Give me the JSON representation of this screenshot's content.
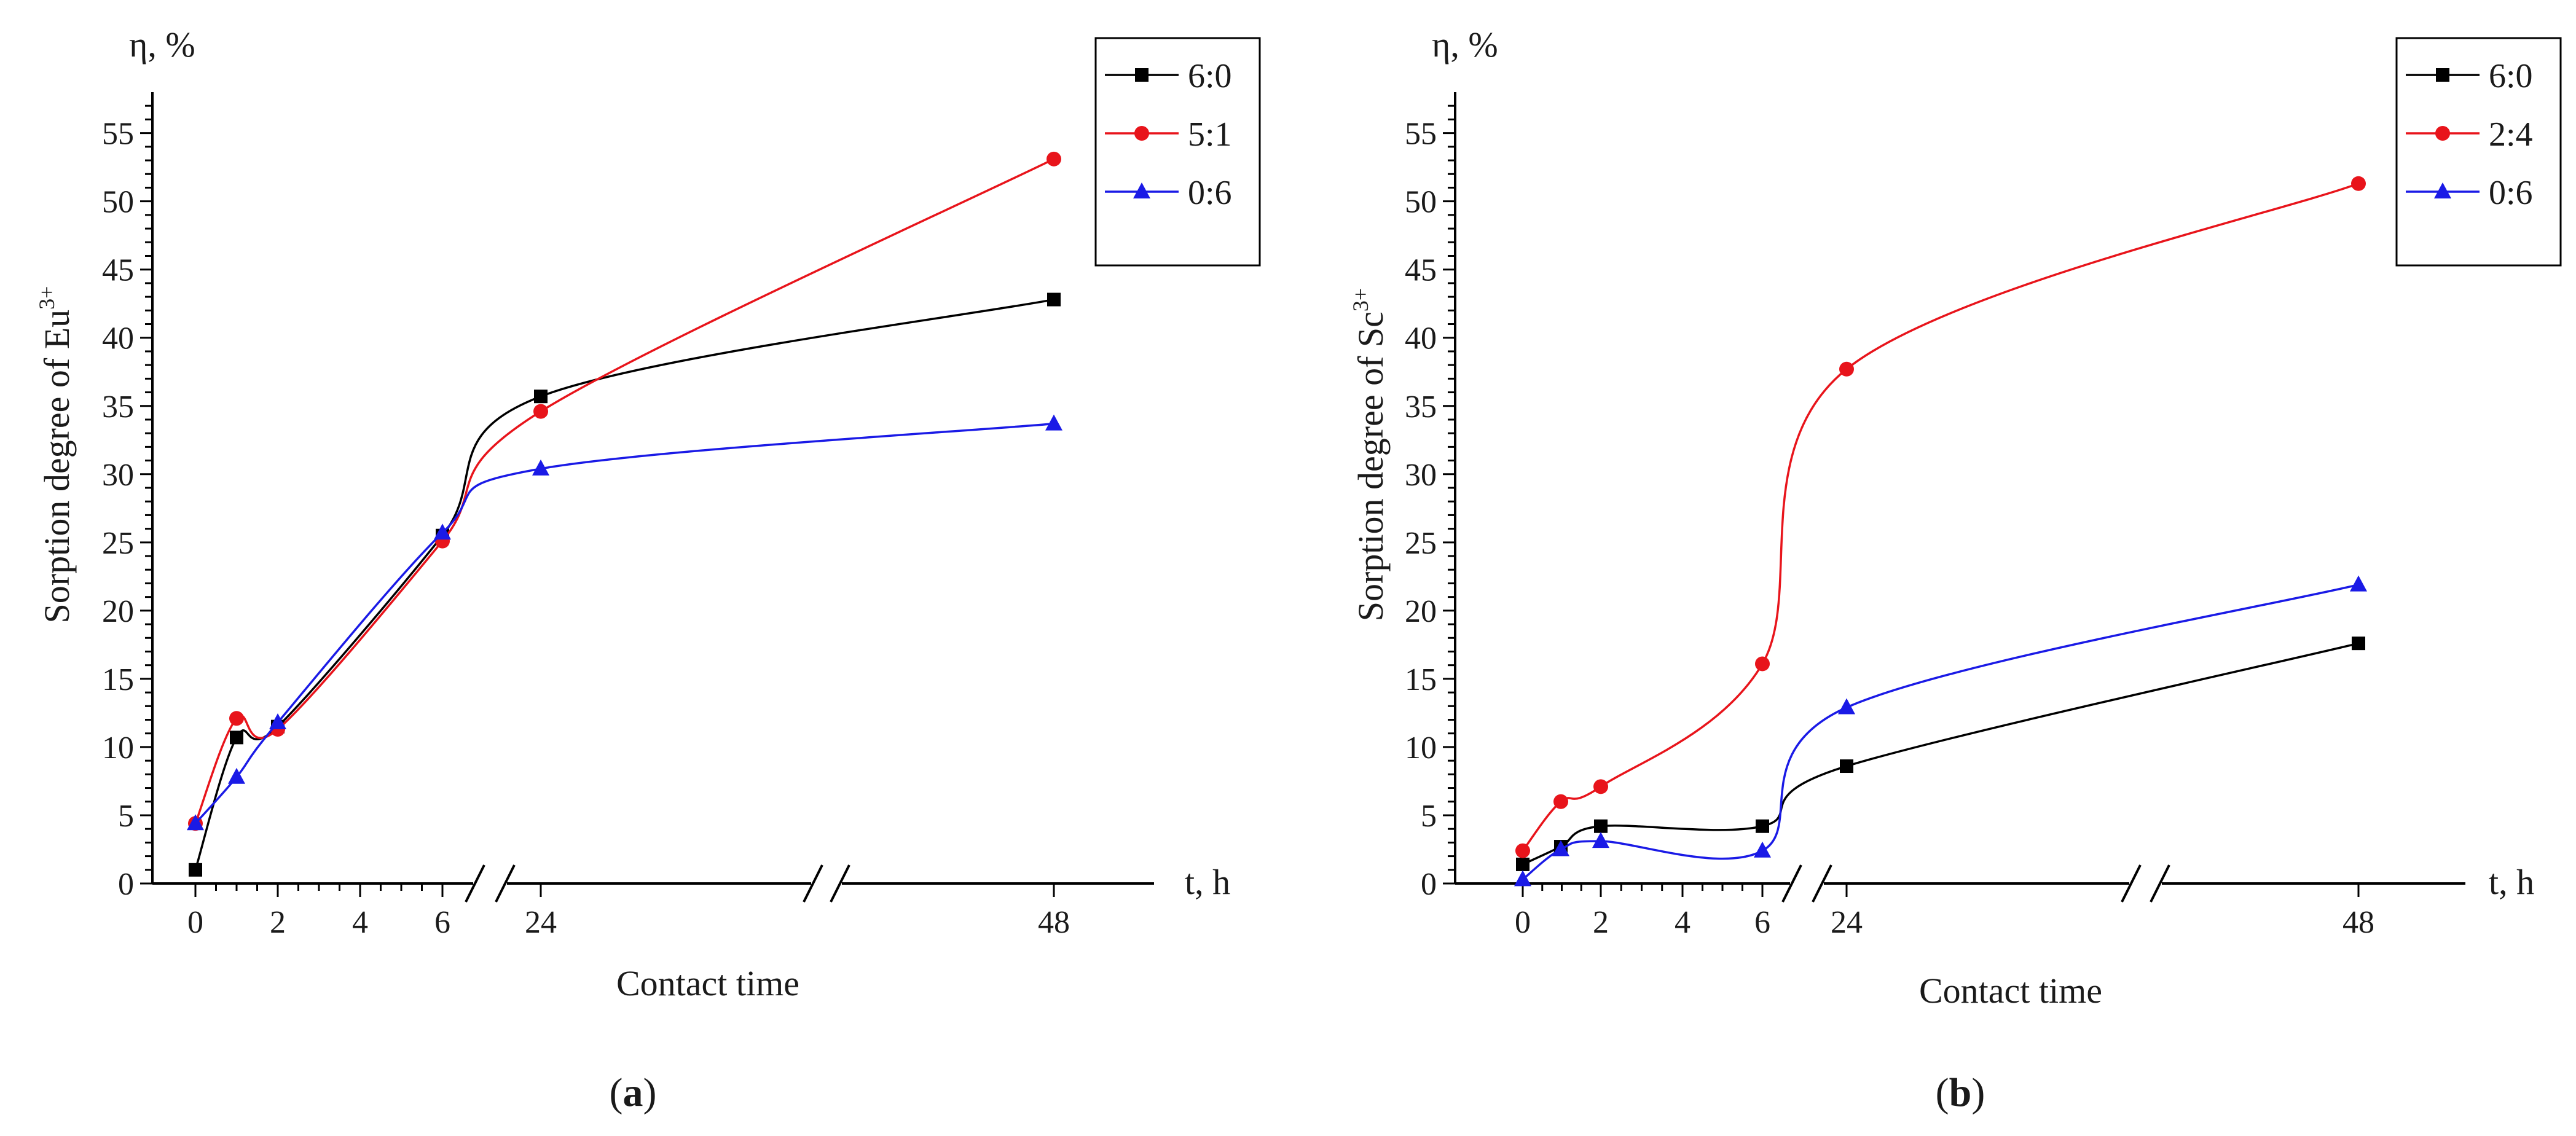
{
  "chart_data": [
    {
      "type": "line",
      "panel_label": "(a)",
      "panel_letter": "a",
      "ylabel_main": "Sorption degree of Eu",
      "ylabel_sup": "3+",
      "y_unit_label": "η, %",
      "xlabel": "Contact time",
      "x_unit_label": "t, h",
      "x_ticks": [
        "0",
        "2",
        "4",
        "6",
        "24",
        "48"
      ],
      "y_ticks": [
        "0",
        "5",
        "10",
        "15",
        "20",
        "25",
        "30",
        "35",
        "40",
        "45",
        "50",
        "55"
      ],
      "ylim": [
        0,
        58
      ],
      "x_breaks": [
        "6–24",
        "24–48"
      ],
      "series": [
        {
          "name": "6:0",
          "color": "#000000",
          "marker": "square",
          "x": [
            0,
            1,
            2,
            6,
            24,
            48
          ],
          "values": [
            1.0,
            10.7,
            11.5,
            25.5,
            35.7,
            42.8
          ]
        },
        {
          "name": "5:1",
          "color": "#e8141b",
          "marker": "circle",
          "x": [
            0,
            1,
            2,
            6,
            24,
            48
          ],
          "values": [
            4.4,
            12.1,
            11.3,
            25.1,
            34.6,
            53.1
          ]
        },
        {
          "name": "0:6",
          "color": "#1a1ae6",
          "marker": "triangle",
          "x": [
            0,
            1,
            2,
            6,
            24,
            48
          ],
          "values": [
            4.4,
            7.8,
            11.8,
            25.7,
            30.4,
            33.7
          ]
        }
      ]
    },
    {
      "type": "line",
      "panel_label": "(b)",
      "panel_letter": "b",
      "ylabel_main": "Sorption degree of Sc",
      "ylabel_sup": "3+",
      "y_unit_label": "η, %",
      "xlabel": "Contact time",
      "x_unit_label": "t, h",
      "x_ticks": [
        "0",
        "2",
        "4",
        "6",
        "24",
        "48"
      ],
      "y_ticks": [
        "0",
        "5",
        "10",
        "15",
        "20",
        "25",
        "30",
        "35",
        "40",
        "45",
        "50",
        "55"
      ],
      "ylim": [
        0,
        58
      ],
      "x_breaks": [
        "6–24",
        "24–48"
      ],
      "series": [
        {
          "name": "6:0",
          "color": "#000000",
          "marker": "square",
          "x": [
            0,
            1,
            2,
            6,
            24,
            48
          ],
          "values": [
            1.4,
            2.7,
            4.2,
            4.2,
            8.6,
            17.6
          ]
        },
        {
          "name": "2:4",
          "color": "#e8141b",
          "marker": "circle",
          "x": [
            0,
            1,
            2,
            6,
            24,
            48
          ],
          "values": [
            2.4,
            6.0,
            7.1,
            16.1,
            37.7,
            51.3
          ]
        },
        {
          "name": "0:6",
          "color": "#1a1ae6",
          "marker": "triangle",
          "x": [
            0,
            1,
            2,
            6,
            24,
            48
          ],
          "values": [
            0.3,
            2.5,
            3.1,
            2.4,
            12.9,
            21.9
          ]
        }
      ]
    }
  ]
}
